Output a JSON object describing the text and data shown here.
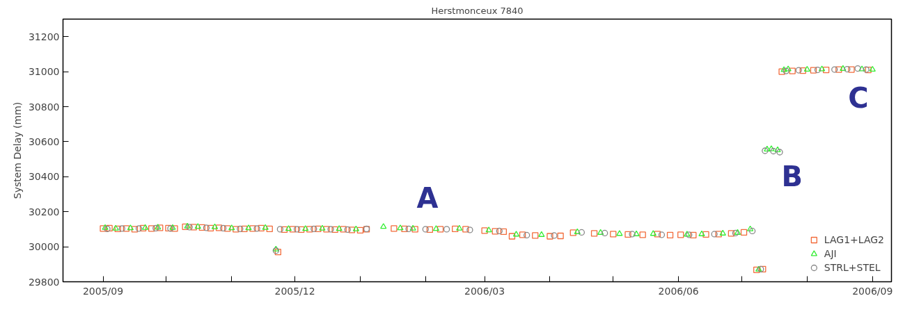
{
  "chart_data": {
    "type": "scatter",
    "title": "Herstmonceux 7840",
    "ylabel": "System Delay (mm)",
    "xlim": [
      "2005-08-13",
      "2006-09-10"
    ],
    "xticks": [
      {
        "value": "2005-09-01",
        "label": "2005/09"
      },
      {
        "value": "2005-10-01",
        "label": null
      },
      {
        "value": "2005-11-01",
        "label": null
      },
      {
        "value": "2005-12-01",
        "label": "2005/12"
      },
      {
        "value": "2006-01-01",
        "label": null
      },
      {
        "value": "2006-02-01",
        "label": null
      },
      {
        "value": "2006-03-01",
        "label": "2006/03"
      },
      {
        "value": "2006-04-01",
        "label": null
      },
      {
        "value": "2006-05-01",
        "label": null
      },
      {
        "value": "2006-06-01",
        "label": "2006/06"
      },
      {
        "value": "2006-07-01",
        "label": null
      },
      {
        "value": "2006-08-01",
        "label": null
      },
      {
        "value": "2006-09-01",
        "label": "2006/09"
      }
    ],
    "ylim": [
      29800,
      31300
    ],
    "yticks": [
      29800,
      30000,
      30200,
      30400,
      30600,
      30800,
      31000,
      31200
    ],
    "grid": false,
    "legend": "bottom right",
    "annotations": [
      "A",
      "B",
      "C"
    ],
    "series": [
      {
        "name": "LAG1+LAG2",
        "color": "#f26b3a",
        "marker": "square",
        "x": [
          "2005-09-01",
          "2005-09-04",
          "2005-09-08",
          "2005-09-12",
          "2005-09-16",
          "2005-09-20",
          "2005-09-24",
          "2005-09-28",
          "2005-10-02",
          "2005-10-05",
          "2005-10-10",
          "2005-10-14",
          "2005-10-18",
          "2005-10-22",
          "2005-10-26",
          "2005-10-30",
          "2005-11-03",
          "2005-11-07",
          "2005-11-11",
          "2005-11-15",
          "2005-11-19",
          "2005-11-23",
          "2005-11-26",
          "2005-11-30",
          "2005-12-04",
          "2005-12-08",
          "2005-12-12",
          "2005-12-16",
          "2005-12-20",
          "2005-12-24",
          "2005-12-28",
          "2006-01-01",
          "2006-01-04",
          "2006-01-17",
          "2006-01-22",
          "2006-01-27",
          "2006-02-03",
          "2006-02-08",
          "2006-02-15",
          "2006-02-20",
          "2006-03-01",
          "2006-03-06",
          "2006-03-10",
          "2006-03-14",
          "2006-03-19",
          "2006-03-25",
          "2006-04-01",
          "2006-04-06",
          "2006-04-12",
          "2006-04-22",
          "2006-05-01",
          "2006-05-08",
          "2006-05-15",
          "2006-05-22",
          "2006-05-28",
          "2006-06-02",
          "2006-06-08",
          "2006-06-14",
          "2006-06-20",
          "2006-06-26",
          "2006-07-02",
          "2006-07-08",
          "2006-07-11",
          "2006-07-20",
          "2006-07-25",
          "2006-07-30",
          "2006-08-04",
          "2006-08-10",
          "2006-08-16",
          "2006-08-22",
          "2006-08-30"
        ],
        "values": [
          30104,
          30106,
          30102,
          30104,
          30100,
          30106,
          30104,
          30108,
          30106,
          30104,
          30114,
          30112,
          30110,
          30106,
          30108,
          30104,
          30100,
          30102,
          30104,
          30106,
          30102,
          29970,
          30098,
          30100,
          30098,
          30100,
          30102,
          30100,
          30098,
          30100,
          30096,
          30094,
          30100,
          30104,
          30102,
          30100,
          30098,
          30100,
          30102,
          30100,
          30092,
          30088,
          30086,
          30060,
          30068,
          30064,
          30060,
          30062,
          30080,
          30076,
          30072,
          30070,
          30068,
          30072,
          30066,
          30068,
          30066,
          30070,
          30072,
          30076,
          30082,
          29868,
          29872,
          31000,
          31004,
          31006,
          31008,
          31010,
          31012,
          31012,
          31010
        ]
      },
      {
        "name": "AJI",
        "color": "#33ee33",
        "marker": "triangle",
        "x": [
          "2005-09-02",
          "2005-09-07",
          "2005-09-14",
          "2005-09-21",
          "2005-09-27",
          "2005-10-04",
          "2005-10-11",
          "2005-10-16",
          "2005-10-24",
          "2005-11-01",
          "2005-11-09",
          "2005-11-17",
          "2005-11-22",
          "2005-11-28",
          "2005-12-06",
          "2005-12-14",
          "2005-12-22",
          "2005-12-30",
          "2006-01-12",
          "2006-01-20",
          "2006-01-26",
          "2006-02-06",
          "2006-02-17",
          "2006-03-03",
          "2006-03-16",
          "2006-03-28",
          "2006-04-14",
          "2006-04-25",
          "2006-05-04",
          "2006-05-12",
          "2006-05-20",
          "2006-06-05",
          "2006-06-12",
          "2006-06-22",
          "2006-06-29",
          "2006-07-05",
          "2006-07-09",
          "2006-07-13",
          "2006-07-15",
          "2006-07-18",
          "2006-07-21",
          "2006-07-23",
          "2006-08-01",
          "2006-08-08",
          "2006-08-18",
          "2006-08-27",
          "2006-09-01"
        ],
        "values": [
          30108,
          30104,
          30106,
          30108,
          30110,
          30108,
          30116,
          30114,
          30112,
          30106,
          30106,
          30108,
          29985,
          30102,
          30102,
          30104,
          30102,
          30100,
          30114,
          30106,
          30104,
          30102,
          30104,
          30094,
          30070,
          30068,
          30084,
          30080,
          30074,
          30072,
          30074,
          30070,
          30072,
          30076,
          30080,
          30100,
          29870,
          30556,
          30558,
          30552,
          31010,
          31014,
          31012,
          31014,
          31016,
          31014,
          31012
        ]
      },
      {
        "name": "STRL+STEL",
        "color": "#888888",
        "marker": "circle",
        "x": [
          "2005-09-03",
          "2005-09-10",
          "2005-09-18",
          "2005-09-26",
          "2005-10-03",
          "2005-10-12",
          "2005-10-20",
          "2005-10-28",
          "2005-11-05",
          "2005-11-13",
          "2005-11-22",
          "2005-11-24",
          "2005-12-02",
          "2005-12-10",
          "2005-12-18",
          "2005-12-26",
          "2006-01-04",
          "2006-01-24",
          "2006-02-01",
          "2006-02-11",
          "2006-02-22",
          "2006-03-08",
          "2006-03-21",
          "2006-04-03",
          "2006-04-16",
          "2006-04-27",
          "2006-05-10",
          "2006-05-24",
          "2006-06-06",
          "2006-06-18",
          "2006-06-28",
          "2006-07-06",
          "2006-07-10",
          "2006-07-12",
          "2006-07-16",
          "2006-07-19",
          "2006-07-22",
          "2006-07-28",
          "2006-08-06",
          "2006-08-14",
          "2006-08-20",
          "2006-08-25",
          "2006-08-29"
        ],
        "values": [
          30102,
          30104,
          30104,
          30106,
          30104,
          30112,
          30108,
          30106,
          30102,
          30104,
          29978,
          30100,
          30100,
          30102,
          30100,
          30098,
          30102,
          30102,
          30100,
          30100,
          30096,
          30090,
          30066,
          30064,
          30082,
          30078,
          30072,
          30068,
          30068,
          30072,
          30078,
          30090,
          29872,
          30548,
          30546,
          30540,
          31004,
          31008,
          31010,
          31012,
          31014,
          31018,
          31012
        ]
      }
    ]
  }
}
